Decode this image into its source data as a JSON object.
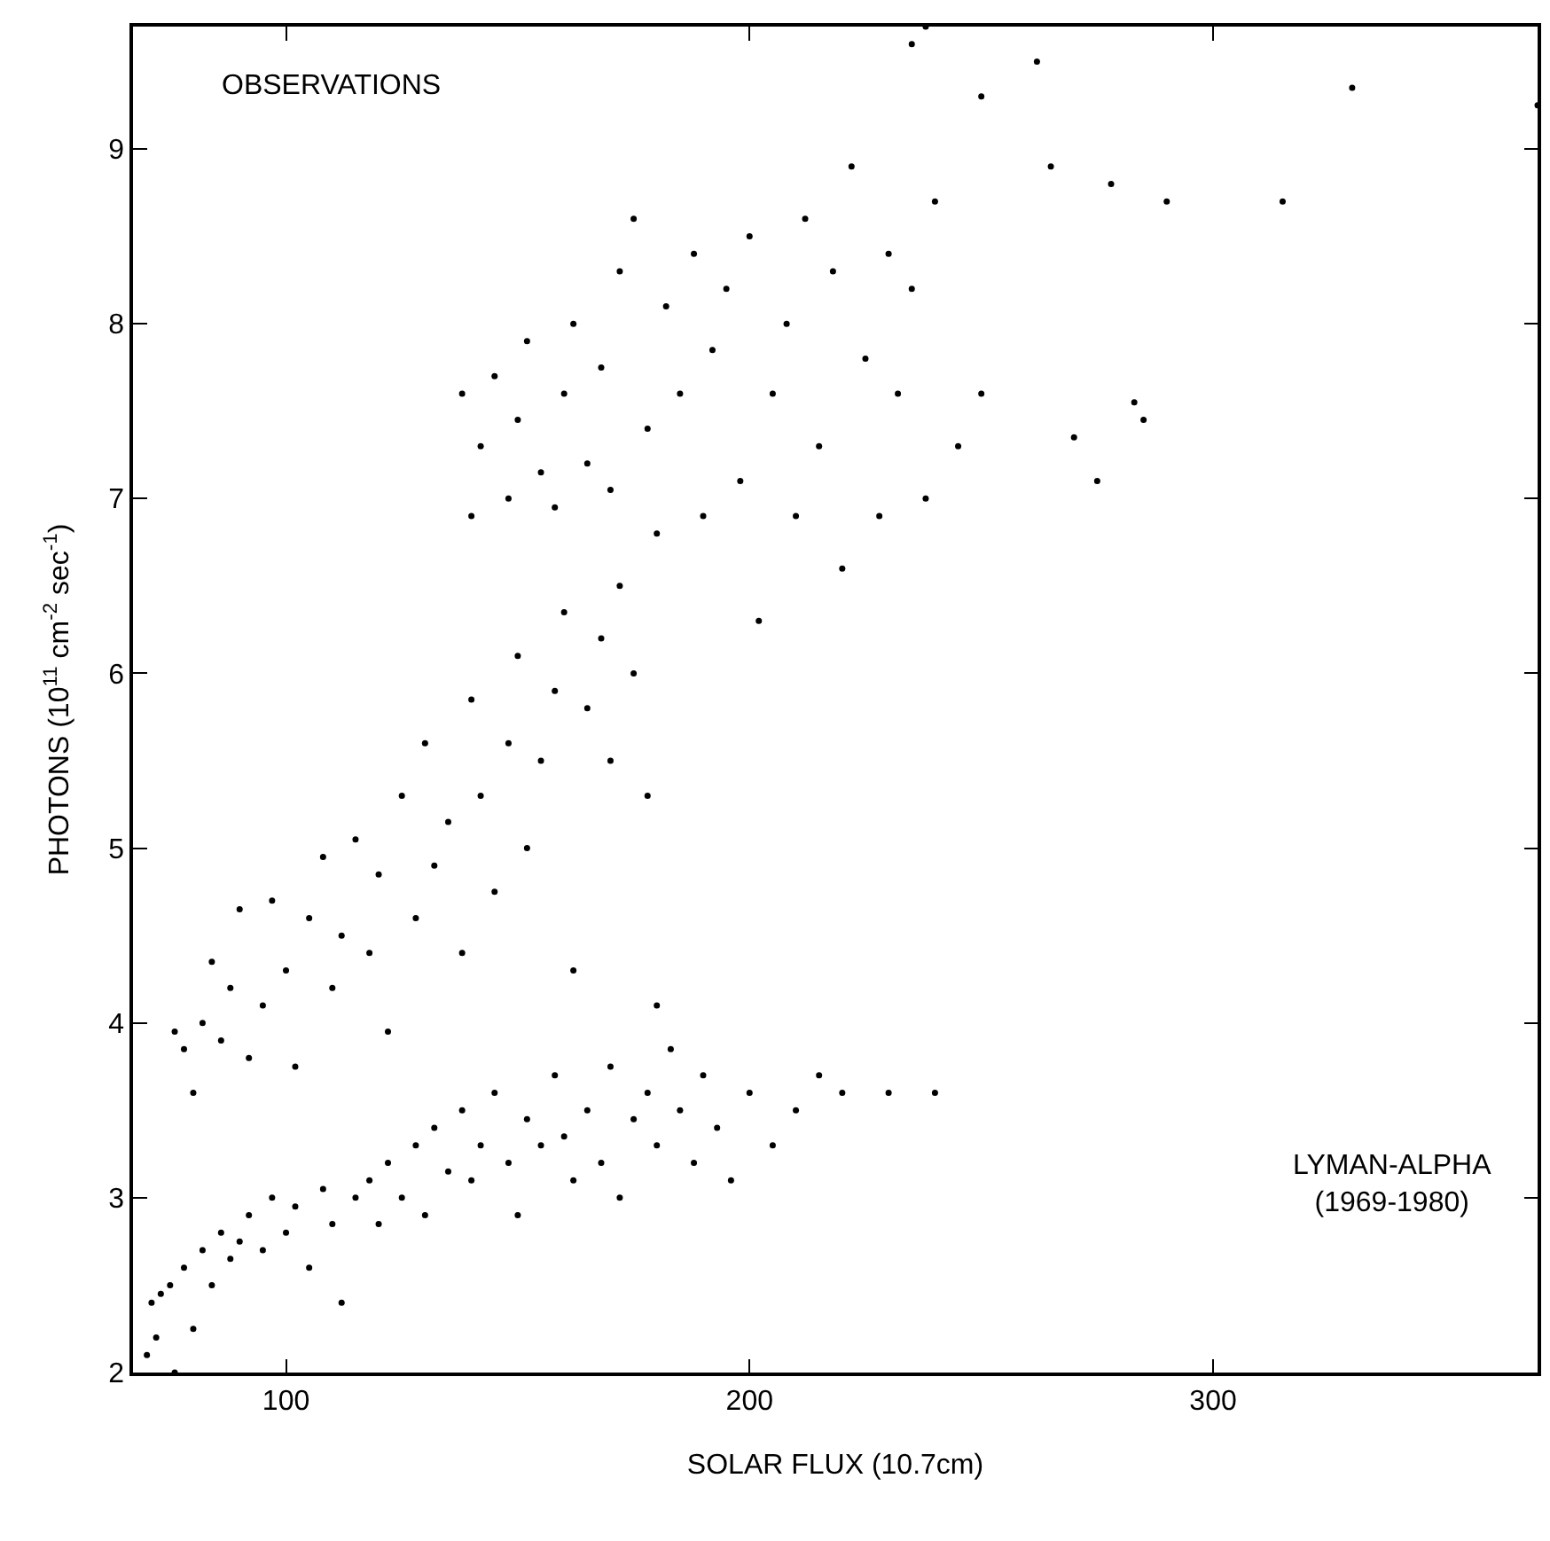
{
  "chart_data": {
    "type": "scatter",
    "xlabel": "SOLAR FLUX (10.7cm)",
    "ylabel": "PHOTONS (10$^{11}$ cm$^{-2}$ sec$^{-1}$)",
    "annotations": [
      "OBSERVATIONS",
      "LYMAN-ALPHA\n(1969-1980)"
    ],
    "xlim": [
      67,
      370
    ],
    "xticks": [
      100,
      200,
      300
    ],
    "ylim": [
      2,
      9.7
    ],
    "yticks": [
      2,
      3,
      4,
      5,
      6,
      7,
      8,
      9
    ],
    "legend": false,
    "series": [
      {
        "color": "#000000",
        "x": [
          70,
          71,
          72,
          73,
          75,
          76,
          78,
          80,
          82,
          84,
          86,
          88,
          90,
          92,
          95,
          97,
          100,
          102,
          105,
          108,
          110,
          112,
          115,
          118,
          120,
          122,
          125,
          128,
          130,
          132,
          135,
          138,
          140,
          142,
          145,
          148,
          150,
          152,
          155,
          158,
          160,
          162,
          165,
          168,
          170,
          172,
          175,
          178,
          180,
          183,
          185,
          188,
          190,
          193,
          196,
          200,
          205,
          210,
          215,
          220,
          230,
          240,
          76,
          78,
          80,
          82,
          84,
          86,
          88,
          90,
          92,
          95,
          97,
          100,
          102,
          105,
          108,
          110,
          112,
          115,
          118,
          120,
          122,
          125,
          128,
          130,
          132,
          135,
          138,
          140,
          142,
          145,
          148,
          150,
          152,
          155,
          158,
          160,
          162,
          165,
          168,
          170,
          172,
          175,
          178,
          180,
          138,
          140,
          142,
          145,
          148,
          150,
          152,
          155,
          158,
          160,
          162,
          165,
          168,
          170,
          172,
          175,
          178,
          180,
          182,
          185,
          188,
          190,
          192,
          195,
          198,
          200,
          202,
          205,
          208,
          210,
          212,
          215,
          218,
          220,
          222,
          225,
          228,
          230,
          232,
          235,
          238,
          240,
          245,
          250,
          235,
          238,
          262,
          265,
          278,
          290,
          315,
          330,
          370,
          270,
          275,
          283,
          285,
          250
        ],
        "values": [
          2.1,
          2.4,
          2.2,
          2.45,
          2.5,
          2.0,
          2.6,
          2.25,
          2.7,
          2.5,
          2.8,
          2.65,
          2.75,
          2.9,
          2.7,
          3.0,
          2.8,
          2.95,
          2.6,
          3.05,
          2.85,
          2.4,
          3.0,
          3.1,
          2.85,
          3.2,
          3.0,
          3.3,
          2.9,
          3.4,
          3.15,
          3.5,
          3.1,
          3.3,
          3.6,
          3.2,
          2.9,
          3.45,
          3.3,
          3.7,
          3.35,
          3.1,
          3.5,
          3.2,
          3.75,
          3.0,
          3.45,
          3.6,
          3.3,
          3.85,
          3.5,
          3.2,
          3.7,
          3.4,
          3.1,
          3.6,
          3.3,
          3.5,
          3.7,
          3.6,
          3.6,
          3.6,
          3.95,
          3.85,
          3.6,
          4.0,
          4.35,
          3.9,
          4.2,
          4.65,
          3.8,
          4.1,
          4.7,
          4.3,
          3.75,
          4.6,
          4.95,
          4.2,
          4.5,
          5.05,
          4.4,
          4.85,
          3.95,
          5.3,
          4.6,
          5.6,
          4.9,
          5.15,
          4.4,
          5.85,
          5.3,
          4.75,
          5.6,
          6.1,
          5.0,
          5.5,
          5.9,
          6.35,
          4.3,
          5.8,
          6.2,
          5.5,
          6.5,
          6.0,
          5.3,
          4.1,
          7.6,
          6.9,
          7.3,
          7.7,
          7.0,
          7.45,
          7.9,
          7.15,
          6.95,
          7.6,
          8.0,
          7.2,
          7.75,
          7.05,
          8.3,
          8.6,
          7.4,
          6.8,
          8.1,
          7.6,
          8.4,
          6.9,
          7.85,
          8.2,
          7.1,
          8.5,
          6.3,
          7.6,
          8.0,
          6.9,
          8.6,
          7.3,
          8.3,
          6.6,
          8.9,
          7.8,
          6.9,
          8.4,
          7.6,
          8.2,
          7.0,
          8.7,
          7.3,
          7.6,
          9.6,
          9.7,
          9.5,
          8.9,
          8.8,
          8.7,
          8.7,
          9.35,
          9.25,
          7.35,
          7.1,
          7.55,
          7.45,
          9.3
        ]
      }
    ]
  }
}
